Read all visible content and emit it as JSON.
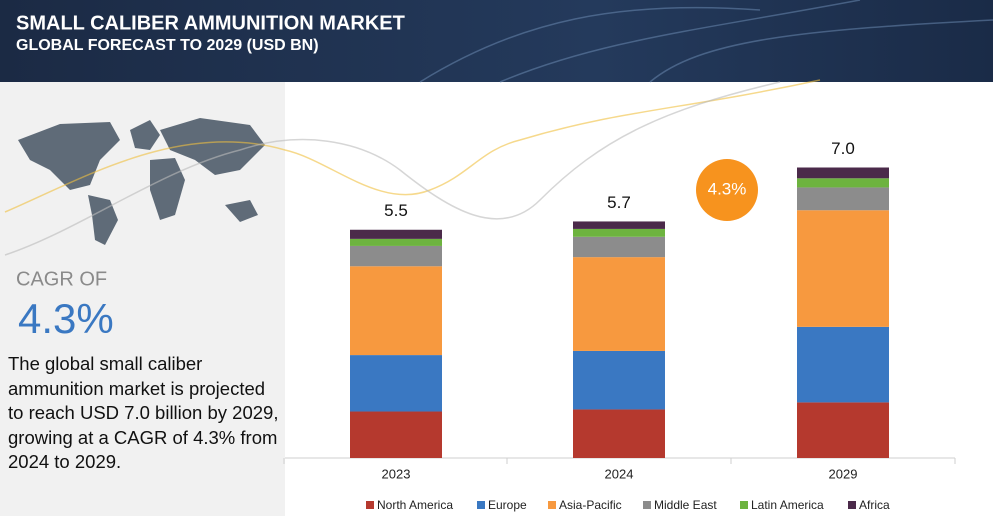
{
  "header": {
    "title": "SMALL CALIBER AMMUNITION MARKET",
    "subtitle": "GLOBAL FORECAST TO 2029 (USD BN)"
  },
  "sidebar": {
    "cagr_label": "CAGR OF",
    "cagr_value": "4.3%",
    "description": "The global small caliber ammunition market is projected to reach  USD 7.0 billion by 2029, growing at a CAGR of 4.3% from 2024 to 2029."
  },
  "chart_data": {
    "type": "stacked_bar",
    "categories": [
      "2023",
      "2024",
      "2029"
    ],
    "series": [
      {
        "name": "North America",
        "color": "#b5392e",
        "values": [
          1.12,
          1.17,
          1.34
        ]
      },
      {
        "name": "Europe",
        "color": "#3a78c2",
        "values": [
          1.36,
          1.41,
          1.82
        ]
      },
      {
        "name": "Asia-Pacific",
        "color": "#f7993f",
        "values": [
          2.14,
          2.26,
          2.81
        ]
      },
      {
        "name": "Middle East",
        "color": "#8c8c8c",
        "values": [
          0.49,
          0.49,
          0.55
        ]
      },
      {
        "name": "Latin America",
        "color": "#6db33f",
        "values": [
          0.17,
          0.19,
          0.22
        ]
      },
      {
        "name": "Africa",
        "color": "#4b2a4a",
        "values": [
          0.22,
          0.18,
          0.26
        ]
      }
    ],
    "totals": [
      5.5,
      5.7,
      7.0
    ],
    "total_labels": [
      "5.5",
      "5.7",
      "7.0"
    ],
    "annotation": "4.3%",
    "annotation_color": "#f7931e",
    "legend": "bottom"
  }
}
